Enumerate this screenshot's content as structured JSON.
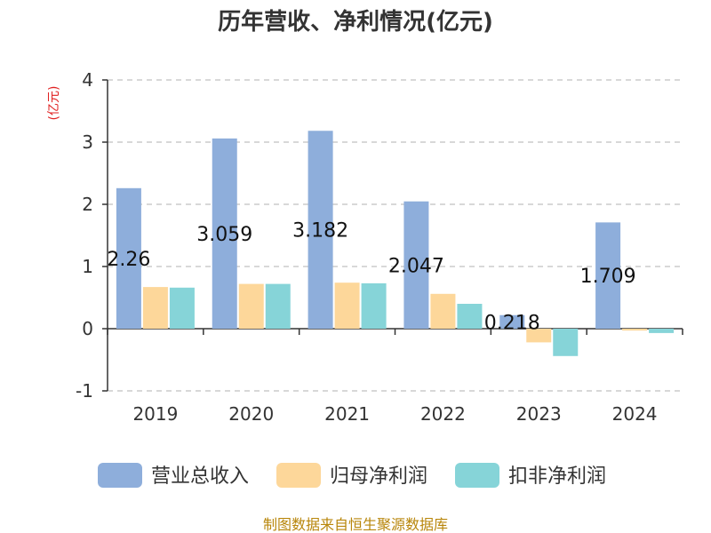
{
  "title": "历年营收、净利情况(亿元)",
  "source_note": "制图数据来自恒生聚源数据库",
  "colors": {
    "unit_label": "#e02020",
    "source_note": "#b8860b",
    "grid": "#cccccc",
    "axis": "#333333"
  },
  "chart_data": {
    "type": "bar",
    "title": "历年营收、净利情况(亿元)",
    "ylabel": "(亿元)",
    "xlabel": "",
    "categories": [
      "2019",
      "2020",
      "2021",
      "2022",
      "2023",
      "2024"
    ],
    "yticks": [
      "4",
      "3",
      "2",
      "1",
      "0",
      "-1"
    ],
    "ylim": [
      -1,
      4
    ],
    "grid": true,
    "legend_position": "bottom",
    "series": [
      {
        "name": "营业总收入",
        "color": "#8eaedb",
        "values": [
          2.26,
          3.059,
          3.182,
          2.047,
          0.218,
          1.709
        ],
        "labels": [
          "2.26",
          "3.059",
          "3.182",
          "2.047",
          "0.218",
          "1.709"
        ]
      },
      {
        "name": "归母净利润",
        "color": "#fdd79a",
        "values": [
          0.67,
          0.72,
          0.74,
          0.56,
          -0.22,
          -0.03
        ]
      },
      {
        "name": "扣非净利润",
        "color": "#86d4d8",
        "values": [
          0.66,
          0.72,
          0.73,
          0.4,
          -0.44,
          -0.07
        ]
      }
    ]
  }
}
